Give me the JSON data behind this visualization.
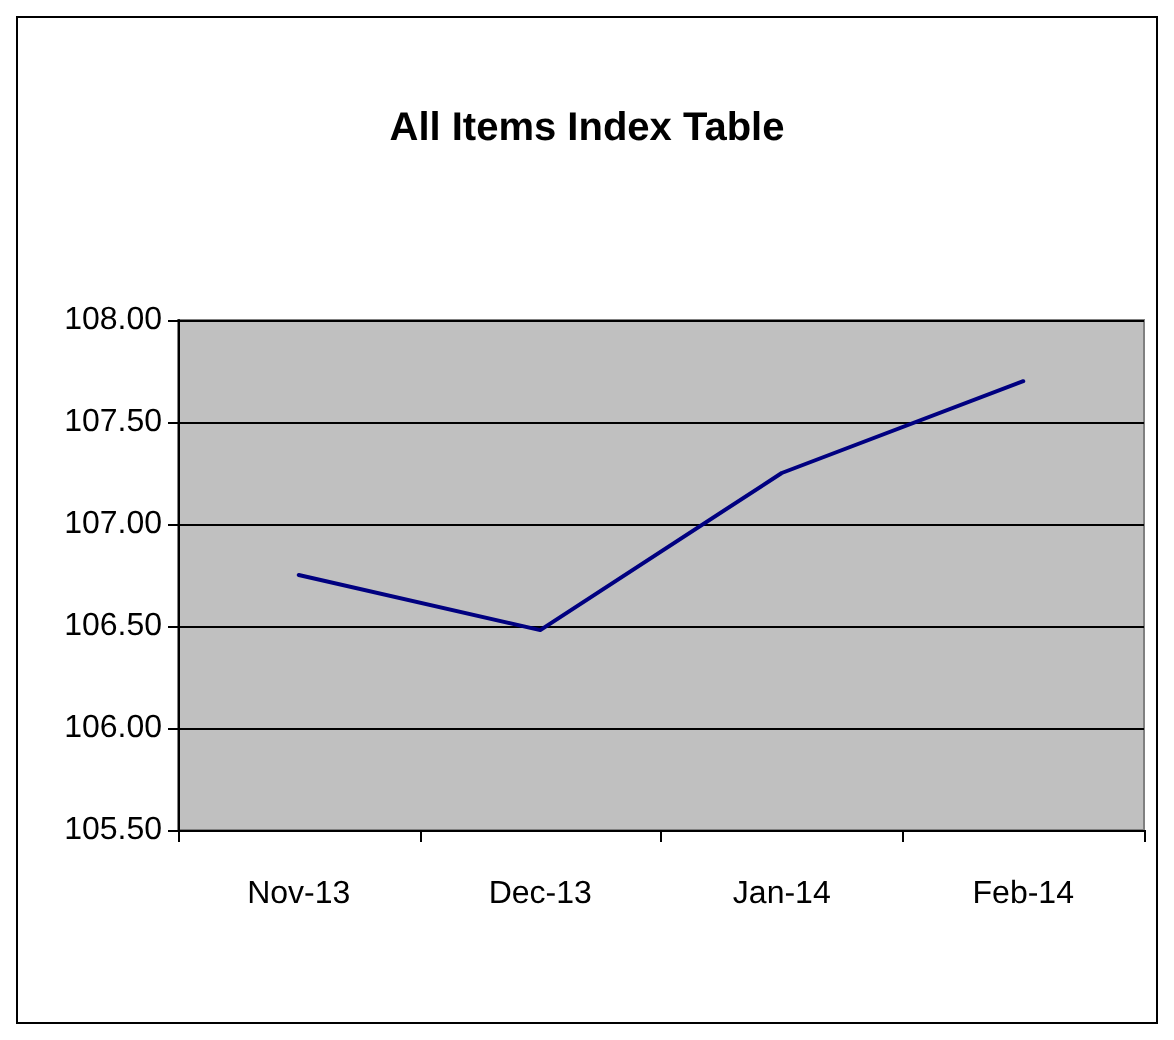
{
  "chart_data": {
    "type": "line",
    "title": "All Items Index Table",
    "categories": [
      "Nov-13",
      "Dec-13",
      "Jan-14",
      "Feb-14"
    ],
    "series": [
      {
        "color": "#000080",
        "values": [
          106.75,
          106.48,
          107.25,
          107.7
        ]
      }
    ],
    "ylim": [
      105.5,
      108
    ],
    "yticks": [
      {
        "value": 105.5,
        "label": "105.50"
      },
      {
        "value": 106,
        "label": "106.00"
      },
      {
        "value": 106.5,
        "label": "106.50"
      },
      {
        "value": 107,
        "label": "107.00"
      },
      {
        "value": 107.5,
        "label": "107.50"
      },
      {
        "value": 108,
        "label": "108.00"
      }
    ],
    "grid": "y",
    "marker": "none",
    "line_style": "solid"
  }
}
